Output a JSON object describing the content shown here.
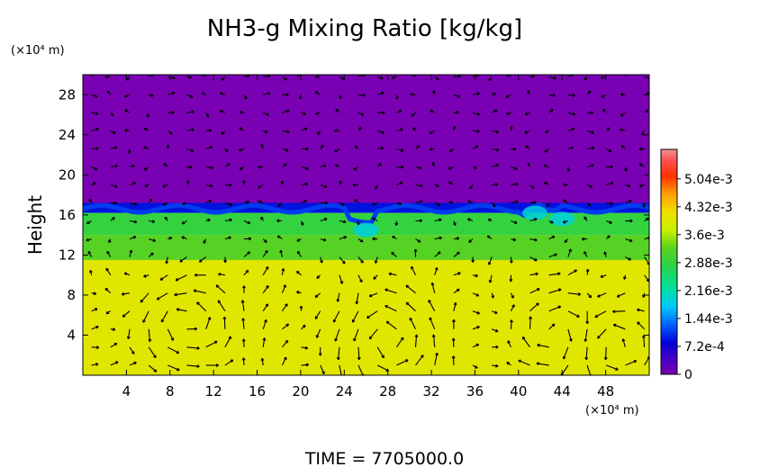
{
  "chart_data": {
    "type": "heatmap",
    "title": "NH3-g Mixing Ratio [kg/kg]",
    "ylabel": "Height",
    "y_unit": "(×10⁴ m)",
    "x_unit": "(×10⁴ m)",
    "footer": "TIME  =  7705000.0",
    "xlim": [
      0,
      52
    ],
    "ylim": [
      0,
      30
    ],
    "x_ticks": [
      "4",
      "8",
      "12",
      "16",
      "20",
      "24",
      "28",
      "32",
      "36",
      "40",
      "44",
      "48"
    ],
    "y_ticks": [
      "4",
      "8",
      "12",
      "16",
      "20",
      "24",
      "28"
    ],
    "colorbar": {
      "min": 0,
      "max": 0.0058,
      "tick_values": [
        0,
        0.00072,
        0.00144,
        0.00216,
        0.00288,
        0.0036,
        0.00432,
        0.00504
      ],
      "tick_labels": [
        "0",
        "7.2e-4",
        "1.44e-3",
        "2.16e-3",
        "2.88e-3",
        "3.6e-3",
        "4.32e-3",
        "5.04e-3"
      ]
    },
    "field_layers": [
      {
        "name": "upper",
        "y_from": 17.2,
        "y_to": 30,
        "value": 0.0
      },
      {
        "name": "transition",
        "y_from": 16.2,
        "y_to": 17.2,
        "value": 0.0009
      },
      {
        "name": "mid-upper",
        "y_from": 14.0,
        "y_to": 16.2,
        "value": 0.0029
      },
      {
        "name": "mid",
        "y_from": 11.5,
        "y_to": 14.0,
        "value": 0.0032
      },
      {
        "name": "lower",
        "y_from": 0,
        "y_to": 11.5,
        "value": 0.004
      }
    ],
    "wind_vectors": true,
    "colors": {
      "low": "#7a00b4",
      "high": "#f08080"
    }
  }
}
